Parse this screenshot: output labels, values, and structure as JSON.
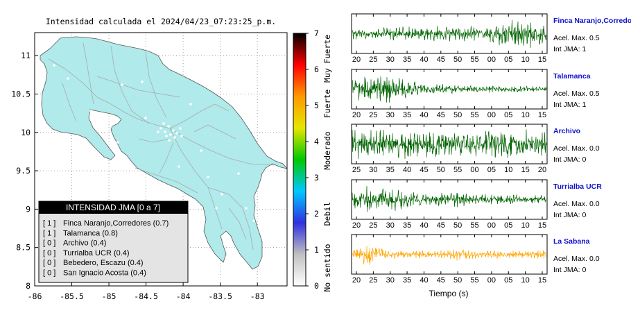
{
  "map": {
    "title": "Intensidad calculada el 2024/04/23_07:23:25_p.m.",
    "x_ticks": [
      "-86",
      "-85.5",
      "-85",
      "-84.5",
      "-84",
      "-83.5",
      "-83"
    ],
    "x_values": [
      -86,
      -85.5,
      -85,
      -84.5,
      -84,
      -83.5,
      -83
    ],
    "y_ticks": [
      "11",
      "10.5",
      "10",
      "9.5",
      "9",
      "8.5",
      "8"
    ],
    "y_values": [
      11,
      10.5,
      10,
      9.5,
      9,
      8.5,
      8
    ],
    "xlim": [
      -86,
      -82.6
    ],
    "ylim": [
      8,
      11.3
    ],
    "land_color": "#b0eaea",
    "road_color": "#aaaaaa"
  },
  "legend": {
    "header": "INTENSIDAD JMA [0 a 7]",
    "entries": [
      {
        "level": "[ 1 ]",
        "text": "Finca Naranjo,Corredores (0.7)"
      },
      {
        "level": "[ 1 ]",
        "text": "Talamanca (0.8)"
      },
      {
        "level": "[ 0 ]",
        "text": "Archivo (0.4)"
      },
      {
        "level": "[ 0 ]",
        "text": "Turrialba UCR (0.4)"
      },
      {
        "level": "[ 0 ]",
        "text": "Bebedero, Escazu (0.4)"
      },
      {
        "level": "[ 0 ]",
        "text": "San Ignacio Acosta (0.4)"
      }
    ]
  },
  "colorbar": {
    "min": 0,
    "max": 7,
    "tick_labels": [
      "0",
      "1",
      "2",
      "3",
      "4",
      "5",
      "6",
      "7"
    ],
    "stops": [
      "#ffffff",
      "#c0c0c0",
      "#3030e0",
      "#00c8ff",
      "#00c800",
      "#e6e600",
      "#ff9900",
      "#ff0000",
      "#000000"
    ],
    "categories": [
      {
        "label": "No sentido",
        "from": 0,
        "to": 1
      },
      {
        "label": "Debil",
        "from": 1,
        "to": 3
      },
      {
        "label": "Moderado",
        "from": 3,
        "to": 4.5
      },
      {
        "label": "Fuerte",
        "from": 4.5,
        "to": 5.6
      },
      {
        "label": "Muy Fuerte",
        "from": 5.6,
        "to": 7
      }
    ]
  },
  "waveforms": {
    "xlabel": "Tiempo (s)",
    "accel_prefix": "Acel. Max.",
    "int_prefix": "Int JMA:",
    "stations": [
      {
        "name": "Finca Naranjo,Corredores",
        "accel": "0.5",
        "int": "1",
        "color": "#006400",
        "ticks": [
          "20",
          "25",
          "30",
          "35",
          "40",
          "45",
          "50",
          "55",
          "00",
          "05",
          "10",
          "15"
        ],
        "first_tick": 20,
        "envelope": [
          0.35,
          0.35,
          0.4,
          0.4,
          0.45,
          0.45,
          0.5,
          0.55,
          0.6,
          0.9,
          1.0,
          0.9
        ]
      },
      {
        "name": "Talamanca",
        "accel": "0.5",
        "int": "1",
        "color": "#006400",
        "ticks": [
          "20",
          "25",
          "30",
          "35",
          "40",
          "45",
          "50",
          "55",
          "00",
          "05",
          "10",
          "15"
        ],
        "first_tick": 20,
        "envelope": [
          0.55,
          0.9,
          1.0,
          0.6,
          0.35,
          0.3,
          0.25,
          0.2,
          0.2,
          0.2,
          0.18,
          0.15
        ]
      },
      {
        "name": "Archivo",
        "accel": "0.0",
        "int": "0",
        "color": "#006400",
        "ticks": [
          "25",
          "30",
          "35",
          "40",
          "45",
          "50",
          "55",
          "00",
          "05",
          "10",
          "15",
          "20"
        ],
        "first_tick": 25,
        "envelope": [
          0.85,
          0.9,
          0.85,
          0.9,
          0.85,
          0.9,
          0.85,
          0.9,
          0.85,
          0.9,
          0.85,
          0.8
        ]
      },
      {
        "name": "Turrialba UCR",
        "accel": "0.0",
        "int": "0",
        "color": "#006400",
        "ticks": [
          "20",
          "25",
          "30",
          "35",
          "40",
          "45",
          "50",
          "55",
          "00",
          "05",
          "10",
          "15"
        ],
        "first_tick": 20,
        "envelope": [
          0.6,
          1.0,
          0.8,
          0.5,
          0.4,
          0.4,
          0.45,
          0.35,
          0.3,
          0.3,
          0.28,
          0.25
        ]
      },
      {
        "name": "La Sabana",
        "accel": "0.0",
        "int": "0",
        "color": "#ffa500",
        "ticks": [
          "20",
          "25",
          "30",
          "35",
          "40",
          "45",
          "50",
          "55",
          "00",
          "05",
          "10",
          "15"
        ],
        "first_tick": 20,
        "envelope": [
          0.25,
          0.8,
          0.3,
          0.25,
          0.25,
          0.25,
          0.4,
          0.25,
          0.25,
          0.25,
          0.25,
          0.3
        ]
      }
    ]
  }
}
